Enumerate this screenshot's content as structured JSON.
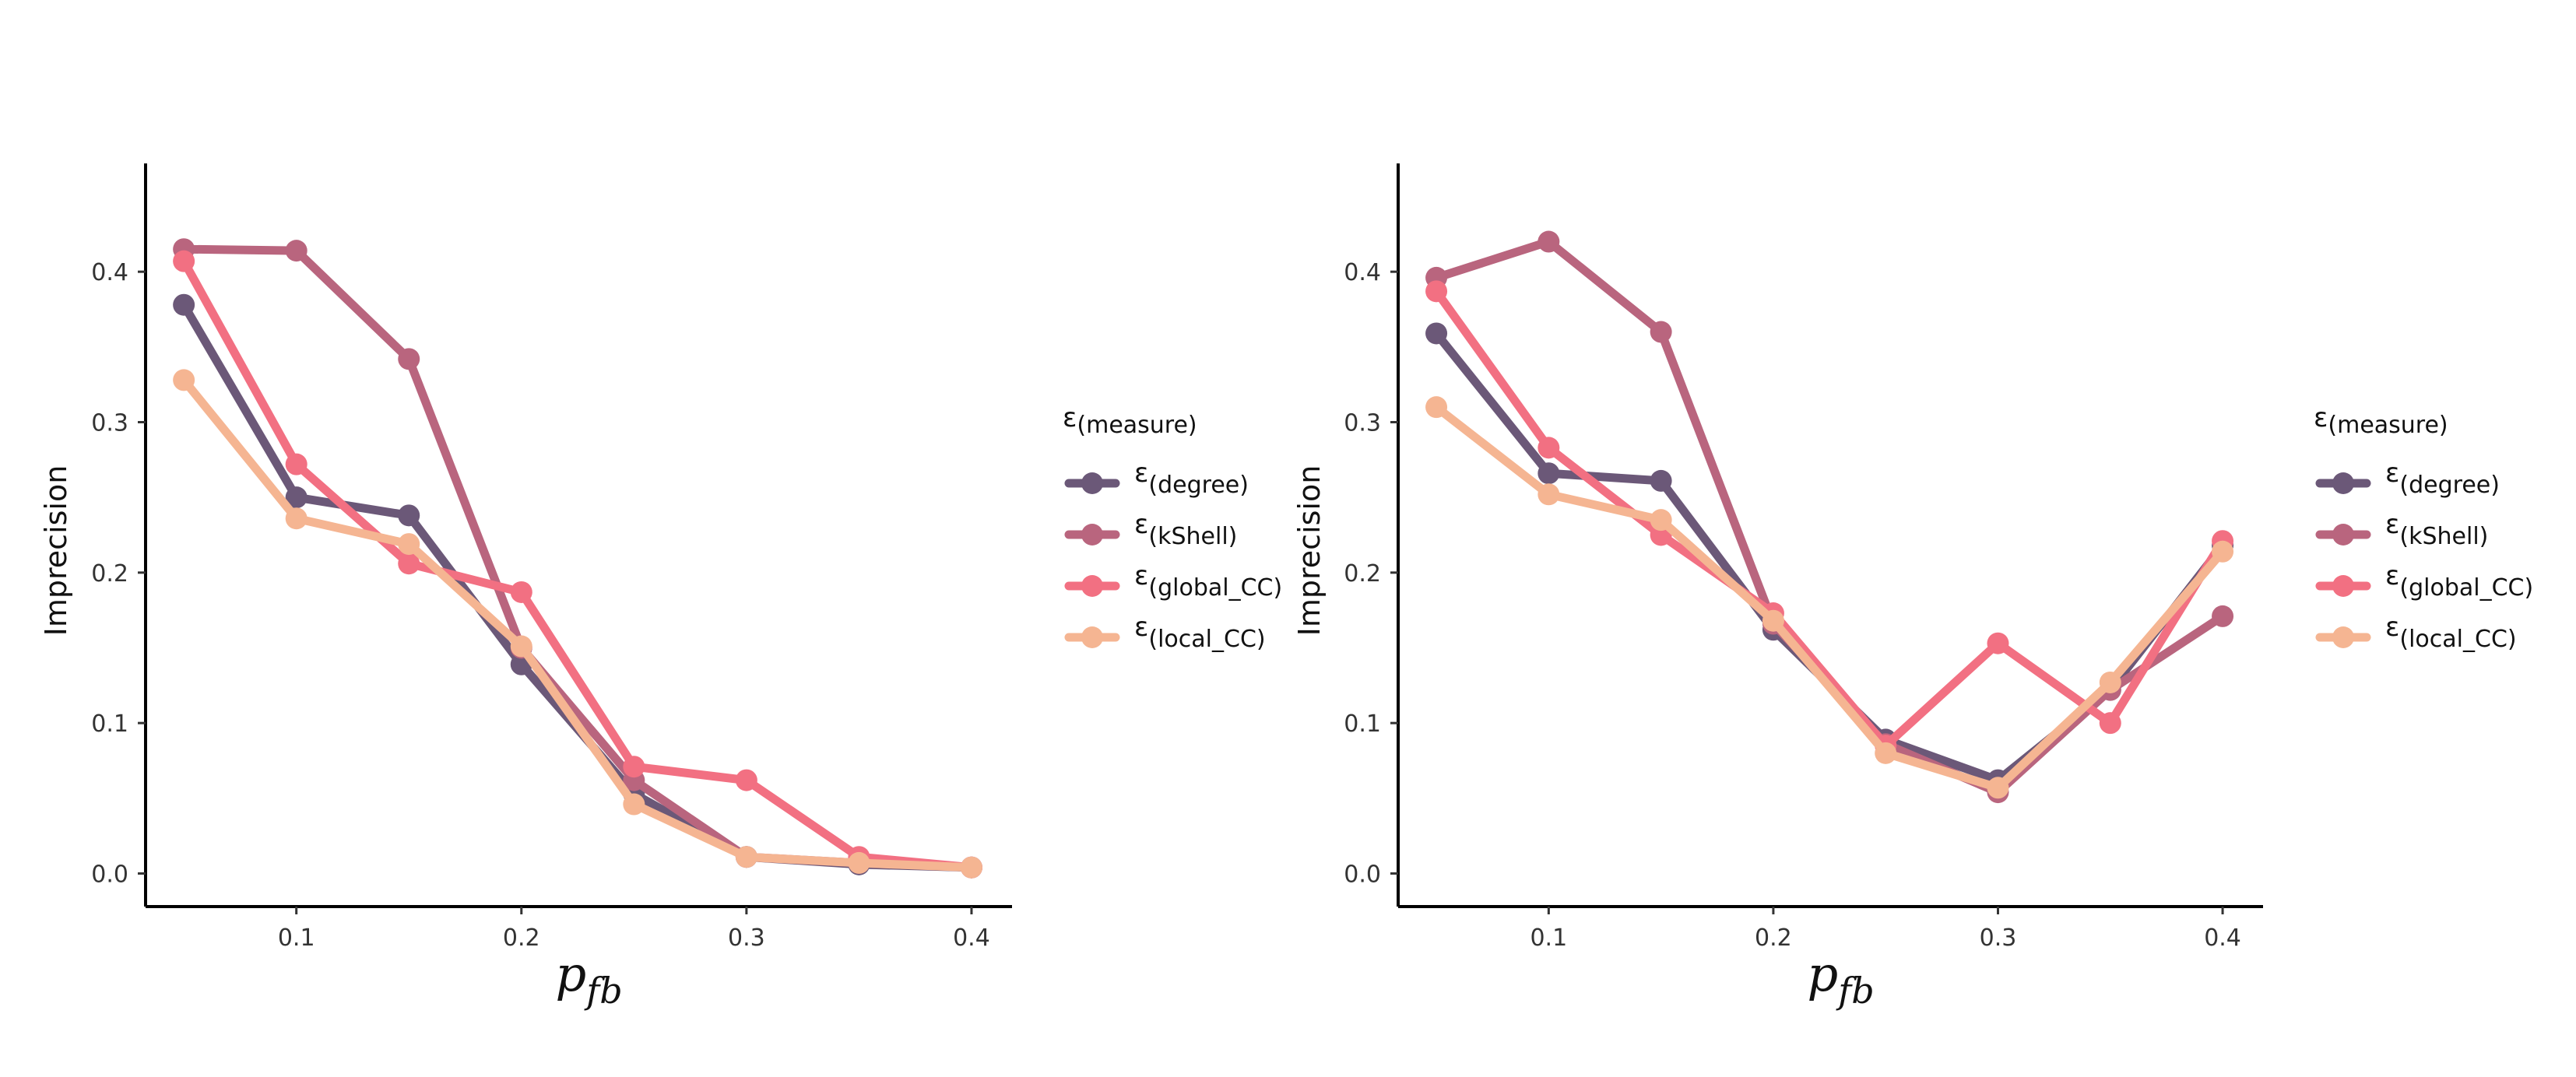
{
  "chart_data": [
    {
      "type": "line",
      "xlabel": "p",
      "xlabel_sub": "fb",
      "ylabel": "Imprecision",
      "xlim": [
        0.033,
        0.418
      ],
      "ylim": [
        -0.022,
        0.472
      ],
      "xticks": [
        "0.1",
        "0.2",
        "0.3",
        "0.4"
      ],
      "xtick_values": [
        0.1,
        0.2,
        0.3,
        0.4
      ],
      "yticks": [
        "0.0",
        "0.1",
        "0.2",
        "0.3",
        "0.4"
      ],
      "ytick_values": [
        0.0,
        0.1,
        0.2,
        0.3,
        0.4
      ],
      "grid": false,
      "legend_title": "ε",
      "legend_title_sub": "(measure)",
      "legend_position": "right",
      "series": [
        {
          "name": "ε",
          "name_sub": "(degree)",
          "color": "#6b5878",
          "x": [
            0.05,
            0.1,
            0.15,
            0.2,
            0.25,
            0.3,
            0.35,
            0.4
          ],
          "y": [
            0.378,
            0.25,
            0.238,
            0.139,
            0.053,
            0.011,
            0.006,
            0.004
          ]
        },
        {
          "name": "ε",
          "name_sub": "(kShell)",
          "color": "#b9657e",
          "x": [
            0.05,
            0.1,
            0.15,
            0.2,
            0.25,
            0.3,
            0.35,
            0.4
          ],
          "y": [
            0.415,
            0.414,
            0.342,
            0.15,
            0.062,
            0.011,
            0.007,
            0.004
          ]
        },
        {
          "name": "ε",
          "name_sub": "(global_CC)",
          "color": "#f27082",
          "x": [
            0.05,
            0.1,
            0.15,
            0.2,
            0.25,
            0.3,
            0.35,
            0.4
          ],
          "y": [
            0.407,
            0.272,
            0.206,
            0.187,
            0.071,
            0.062,
            0.011,
            0.004
          ]
        },
        {
          "name": "ε",
          "name_sub": "(local_CC)",
          "color": "#f5b592",
          "x": [
            0.05,
            0.1,
            0.15,
            0.2,
            0.25,
            0.3,
            0.35,
            0.4
          ],
          "y": [
            0.328,
            0.236,
            0.219,
            0.151,
            0.046,
            0.011,
            0.007,
            0.004
          ]
        }
      ]
    },
    {
      "type": "line",
      "xlabel": "p",
      "xlabel_sub": "fb",
      "ylabel": "Imprecision",
      "xlim": [
        0.033,
        0.418
      ],
      "ylim": [
        -0.022,
        0.472
      ],
      "xticks": [
        "0.1",
        "0.2",
        "0.3",
        "0.4"
      ],
      "xtick_values": [
        0.1,
        0.2,
        0.3,
        0.4
      ],
      "yticks": [
        "0.0",
        "0.1",
        "0.2",
        "0.3",
        "0.4"
      ],
      "ytick_values": [
        0.0,
        0.1,
        0.2,
        0.3,
        0.4
      ],
      "grid": false,
      "legend_title": "ε",
      "legend_title_sub": "(measure)",
      "legend_position": "right",
      "series": [
        {
          "name": "ε",
          "name_sub": "(degree)",
          "color": "#6b5878",
          "x": [
            0.05,
            0.1,
            0.15,
            0.2,
            0.25,
            0.3,
            0.35,
            0.4
          ],
          "y": [
            0.359,
            0.266,
            0.261,
            0.162,
            0.089,
            0.062,
            0.122,
            0.218
          ]
        },
        {
          "name": "ε",
          "name_sub": "(kShell)",
          "color": "#b9657e",
          "x": [
            0.05,
            0.1,
            0.15,
            0.2,
            0.25,
            0.3,
            0.35,
            0.4
          ],
          "y": [
            0.396,
            0.42,
            0.36,
            0.166,
            0.086,
            0.054,
            0.122,
            0.171
          ]
        },
        {
          "name": "ε",
          "name_sub": "(global_CC)",
          "color": "#f27082",
          "x": [
            0.05,
            0.1,
            0.15,
            0.2,
            0.25,
            0.3,
            0.35,
            0.4
          ],
          "y": [
            0.387,
            0.283,
            0.225,
            0.173,
            0.085,
            0.153,
            0.1,
            0.221
          ]
        },
        {
          "name": "ε",
          "name_sub": "(local_CC)",
          "color": "#f5b592",
          "x": [
            0.05,
            0.1,
            0.15,
            0.2,
            0.25,
            0.3,
            0.35,
            0.4
          ],
          "y": [
            0.31,
            0.252,
            0.235,
            0.168,
            0.08,
            0.057,
            0.127,
            0.214
          ]
        }
      ]
    }
  ]
}
